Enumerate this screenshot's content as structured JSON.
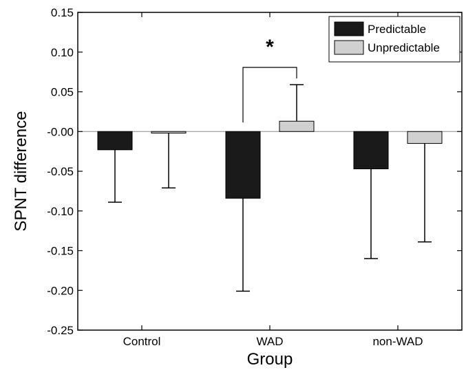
{
  "chart_data": {
    "type": "bar",
    "xlabel": "Group",
    "ylabel": "SPNT difference",
    "categories": [
      "Control",
      "WAD",
      "non-WAD"
    ],
    "ylim": [
      -0.25,
      0.15
    ],
    "yticks": [
      0.15,
      0.1,
      0.05,
      0.0,
      -0.05,
      -0.1,
      -0.15,
      -0.2,
      -0.25
    ],
    "ytick_labels": [
      "0.15",
      "0.10",
      "0.05",
      "-0.00",
      "-0.05",
      "-0.10",
      "-0.15",
      "-0.20",
      "-0.25"
    ],
    "legend_position": "top-right",
    "grid": false,
    "series": [
      {
        "name": "Predictable",
        "color": "#1a1a1a",
        "values": [
          -0.023,
          -0.084,
          -0.047
        ],
        "error": [
          0.066,
          0.117,
          0.113
        ]
      },
      {
        "name": "Unpredictable",
        "color": "#d0d0d0",
        "values": [
          -0.002,
          0.013,
          -0.015
        ],
        "error": [
          0.069,
          0.046,
          0.124
        ]
      }
    ],
    "annotations": [
      {
        "text": "*",
        "group": "WAD",
        "bracket_between": [
          "Predictable",
          "Unpredictable"
        ]
      }
    ]
  }
}
